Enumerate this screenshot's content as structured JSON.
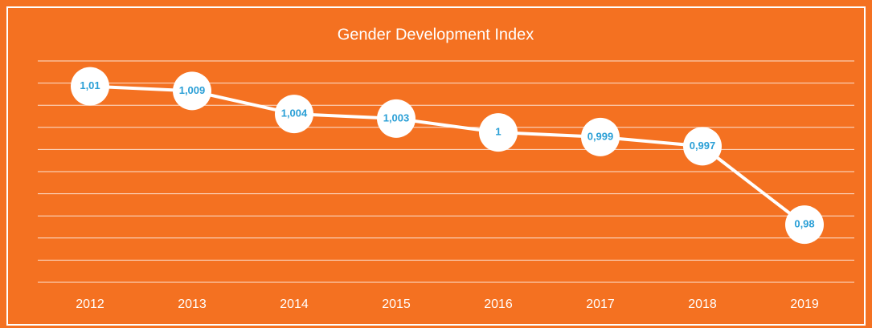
{
  "chart_data": {
    "type": "line",
    "title": "Gender Development Index",
    "categories": [
      "2012",
      "2013",
      "2014",
      "2015",
      "2016",
      "2017",
      "2018",
      "2019"
    ],
    "series": [
      {
        "name": "Gender Development Index",
        "color": "#ffffff",
        "values": [
          1.01,
          1.009,
          1.004,
          1.003,
          1,
          0.999,
          0.997,
          0.98
        ],
        "value_labels": [
          "1,01",
          "1,009",
          "1,004",
          "1,003",
          "1",
          "0,999",
          "0,997",
          "0,98"
        ]
      }
    ],
    "ylim": [
      0.9675,
      1.0155
    ],
    "yticks": [
      0.9675,
      0.9723,
      0.9771,
      0.9819,
      0.9867,
      0.9915,
      0.9963,
      1.0011,
      1.0059,
      1.0107,
      1.0155
    ],
    "grid": true
  }
}
